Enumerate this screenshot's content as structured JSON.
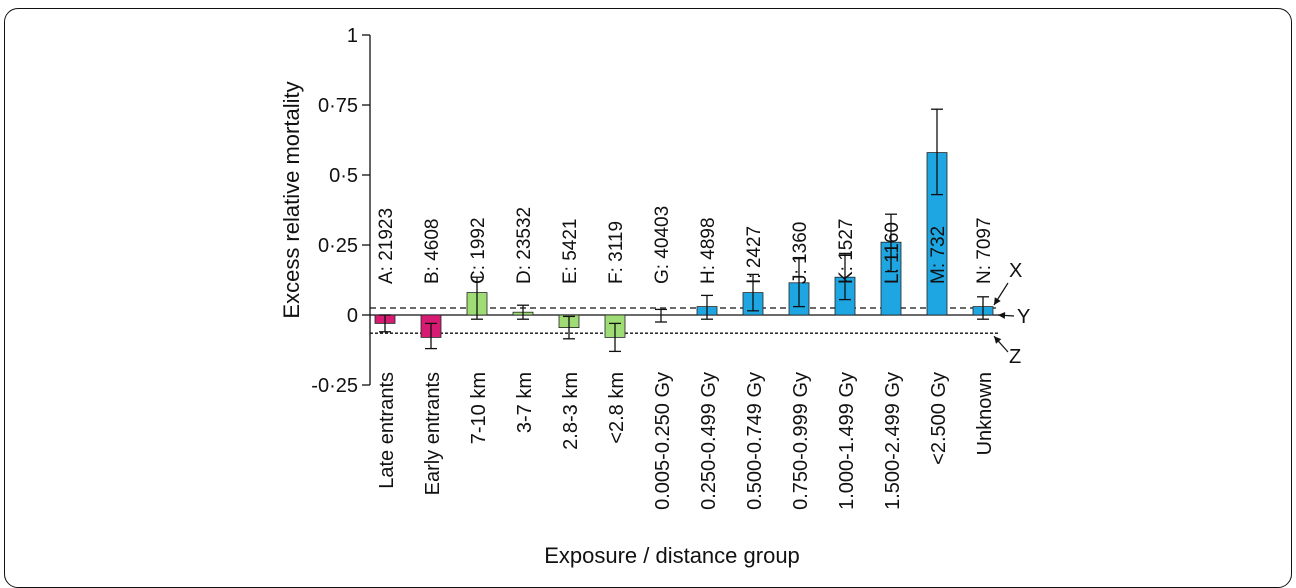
{
  "chart_data": {
    "type": "bar",
    "ylabel": "Excess relative mortality",
    "xlabel": "Exposure / distance group",
    "ylim": [
      -0.25,
      1
    ],
    "yticks": [
      "-0·25",
      "0",
      "0·25",
      "0·5",
      "0·75",
      "1"
    ],
    "ytick_values": [
      -0.25,
      0,
      0.25,
      0.5,
      0.75,
      1
    ],
    "colors": {
      "magenta": "#d81b72",
      "green": "#9fdc76",
      "blue": "#1ea6e3"
    },
    "categories": [
      "Late entrants",
      "Early entrants",
      "7-10 km",
      "3-7 km",
      "2.8-3 km",
      "<2.8 km",
      "0.005-0.250 Gy",
      "0.250-0.499 Gy",
      "0.500-0.749 Gy",
      "0.750-0.999 Gy",
      "1.000-1.499 Gy",
      "1.500-2.499 Gy",
      "<2.500 Gy",
      "Unknown"
    ],
    "bar_labels": [
      "A: 21923",
      "B: 4608",
      "C: 1992",
      "D: 23532",
      "E: 5421",
      "F: 3119",
      "G: 40403",
      "H: 4898",
      "I: 2427",
      "J: 1360",
      "K: 1527",
      "L: 1160",
      "M: 732",
      "N: 7097"
    ],
    "values": [
      -0.03,
      -0.08,
      0.08,
      0.01,
      -0.045,
      -0.08,
      0.0,
      0.03,
      0.08,
      0.115,
      0.135,
      0.26,
      0.58,
      0.03
    ],
    "err_low": [
      -0.06,
      -0.12,
      -0.015,
      -0.015,
      -0.085,
      -0.13,
      -0.025,
      -0.015,
      0.015,
      0.03,
      0.055,
      0.155,
      0.43,
      -0.015
    ],
    "err_high": [
      0.0,
      -0.03,
      0.135,
      0.035,
      -0.005,
      -0.03,
      0.02,
      0.07,
      0.145,
      0.205,
      0.22,
      0.36,
      0.735,
      0.065
    ],
    "color_keys": [
      "magenta",
      "magenta",
      "green",
      "green",
      "green",
      "green",
      "blue",
      "blue",
      "blue",
      "blue",
      "blue",
      "blue",
      "blue",
      "blue"
    ],
    "reference_lines": [
      {
        "name": "X",
        "value": 0.025,
        "style": "dashed"
      },
      {
        "name": "Y",
        "value": 0,
        "style": "solid"
      },
      {
        "name": "Z",
        "value": -0.065,
        "style": "dotted"
      }
    ],
    "grid": false,
    "legend": "none"
  }
}
